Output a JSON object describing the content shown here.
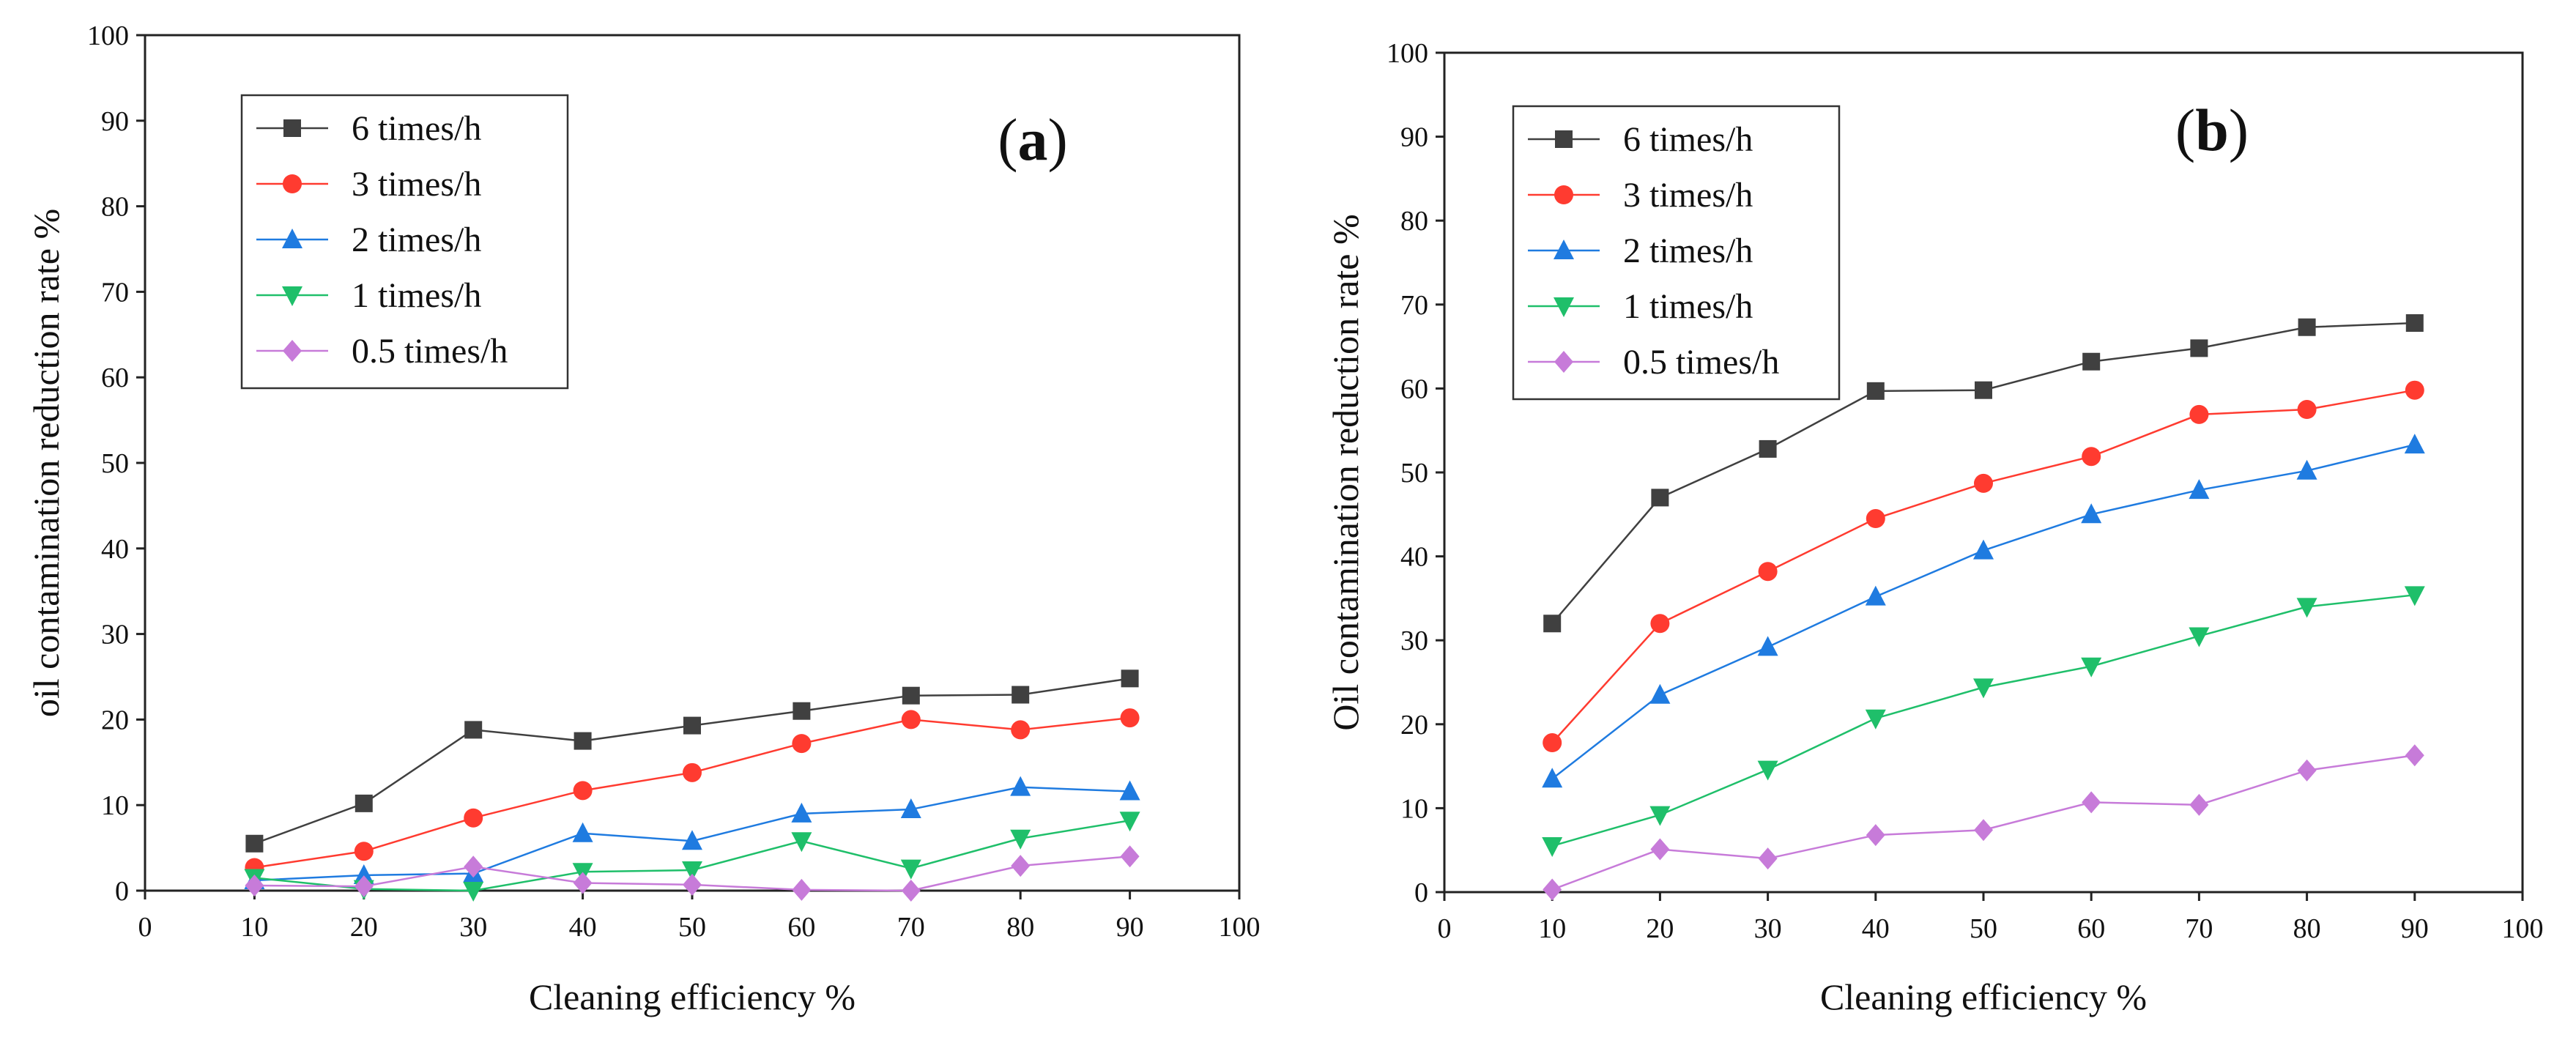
{
  "colors": {
    "6 times/h": "#404040",
    "3 times/h": "#ff3b30",
    "2 times/h": "#1f7be0",
    "1 times/h": "#1fbf6a",
    "0.5 times/h": "#c77bd9"
  },
  "chart_data": [
    {
      "type": "line",
      "panel_label_open": "(",
      "panel_label": "a",
      "panel_label_close": ")",
      "xlabel": "Cleaning efficiency %",
      "ylabel": "oil contamination reduction rate %",
      "xlim": [
        0,
        100
      ],
      "ylim": [
        0,
        100
      ],
      "xticks": [
        0,
        10,
        20,
        30,
        40,
        50,
        60,
        70,
        80,
        90,
        100
      ],
      "yticks": [
        0,
        10,
        20,
        30,
        40,
        50,
        60,
        70,
        80,
        90,
        100
      ],
      "x": [
        10,
        20,
        30,
        40,
        50,
        60,
        70,
        80,
        90
      ],
      "legend_position": "top-left",
      "grid": false,
      "series": [
        {
          "name": "6 times/h",
          "marker": "square",
          "values": [
            5.5,
            10.2,
            18.8,
            17.5,
            19.3,
            21.0,
            22.8,
            22.9,
            24.8
          ]
        },
        {
          "name": "3 times/h",
          "marker": "circle",
          "values": [
            2.7,
            4.6,
            8.5,
            11.7,
            13.8,
            17.2,
            20.0,
            18.8,
            20.2
          ]
        },
        {
          "name": "2 times/h",
          "marker": "triangle-up",
          "values": [
            1.2,
            1.8,
            2.0,
            6.7,
            5.8,
            9.0,
            9.5,
            12.1,
            11.6
          ]
        },
        {
          "name": "1 times/h",
          "marker": "triangle-down",
          "values": [
            1.5,
            0.2,
            0.0,
            2.2,
            2.4,
            5.8,
            2.6,
            6.1,
            8.2
          ]
        },
        {
          "name": "0.5 times/h",
          "marker": "diamond",
          "values": [
            0.6,
            0.5,
            2.8,
            0.9,
            0.7,
            0.1,
            0.0,
            2.9,
            4.0
          ]
        }
      ]
    },
    {
      "type": "line",
      "panel_label_open": "(",
      "panel_label": "b",
      "panel_label_close": ")",
      "xlabel": "Cleaning efficiency %",
      "ylabel": "Oil contamination reduction rate %",
      "xlim": [
        0,
        100
      ],
      "ylim": [
        0,
        100
      ],
      "xticks": [
        0,
        10,
        20,
        30,
        40,
        50,
        60,
        70,
        80,
        90,
        100
      ],
      "yticks": [
        0,
        10,
        20,
        30,
        40,
        50,
        60,
        70,
        80,
        90,
        100
      ],
      "x": [
        10,
        20,
        30,
        40,
        50,
        60,
        70,
        80,
        90
      ],
      "legend_position": "top-left",
      "grid": false,
      "series": [
        {
          "name": "6 times/h",
          "marker": "square",
          "values": [
            32.0,
            47.0,
            52.8,
            59.7,
            59.8,
            63.2,
            64.8,
            67.3,
            67.8
          ]
        },
        {
          "name": "3 times/h",
          "marker": "circle",
          "values": [
            17.8,
            32.0,
            38.2,
            44.5,
            48.7,
            51.9,
            56.9,
            57.5,
            59.8
          ]
        },
        {
          "name": "2 times/h",
          "marker": "triangle-up",
          "values": [
            13.5,
            23.5,
            29.2,
            35.2,
            40.7,
            45.0,
            47.9,
            50.2,
            53.3
          ]
        },
        {
          "name": "1 times/h",
          "marker": "triangle-down",
          "values": [
            5.5,
            9.2,
            14.6,
            20.7,
            24.4,
            26.9,
            30.5,
            34.0,
            35.4
          ]
        },
        {
          "name": "0.5 times/h",
          "marker": "diamond",
          "values": [
            0.3,
            5.1,
            4.0,
            6.8,
            7.4,
            10.7,
            10.4,
            14.5,
            16.3
          ]
        }
      ]
    }
  ]
}
